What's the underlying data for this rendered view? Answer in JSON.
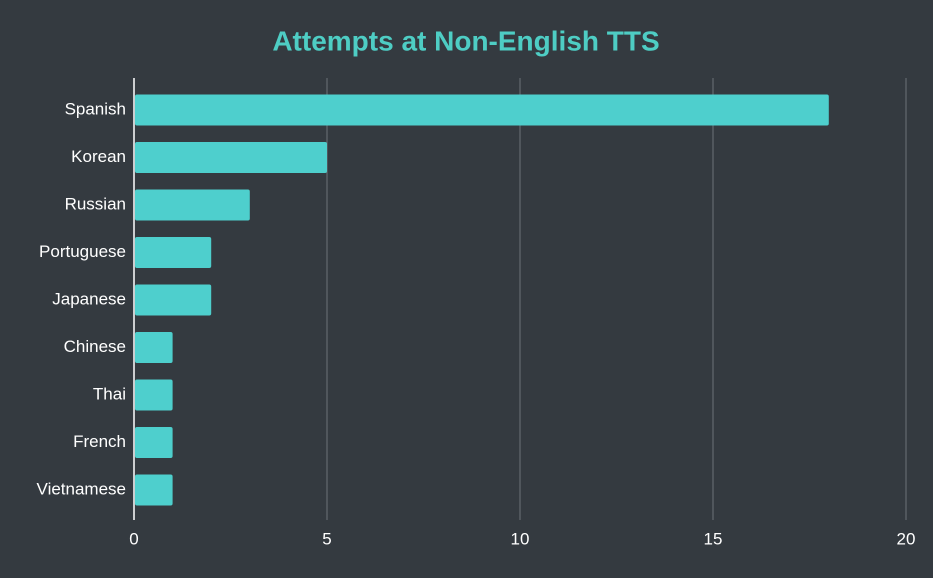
{
  "chart_data": {
    "type": "bar",
    "orientation": "horizontal",
    "title": "Attempts at Non-English TTS",
    "categories": [
      "Spanish",
      "Korean",
      "Russian",
      "Portuguese",
      "Japanese",
      "Chinese",
      "Thai",
      "French",
      "Vietnamese"
    ],
    "values": [
      18,
      5,
      3,
      2,
      2,
      1,
      1,
      1,
      1
    ],
    "color": "#4ecfcd",
    "title_color": "#4ecdc4",
    "xlim": [
      0,
      20
    ],
    "xticks": [
      0,
      5,
      10,
      15,
      20
    ],
    "grid": true
  }
}
